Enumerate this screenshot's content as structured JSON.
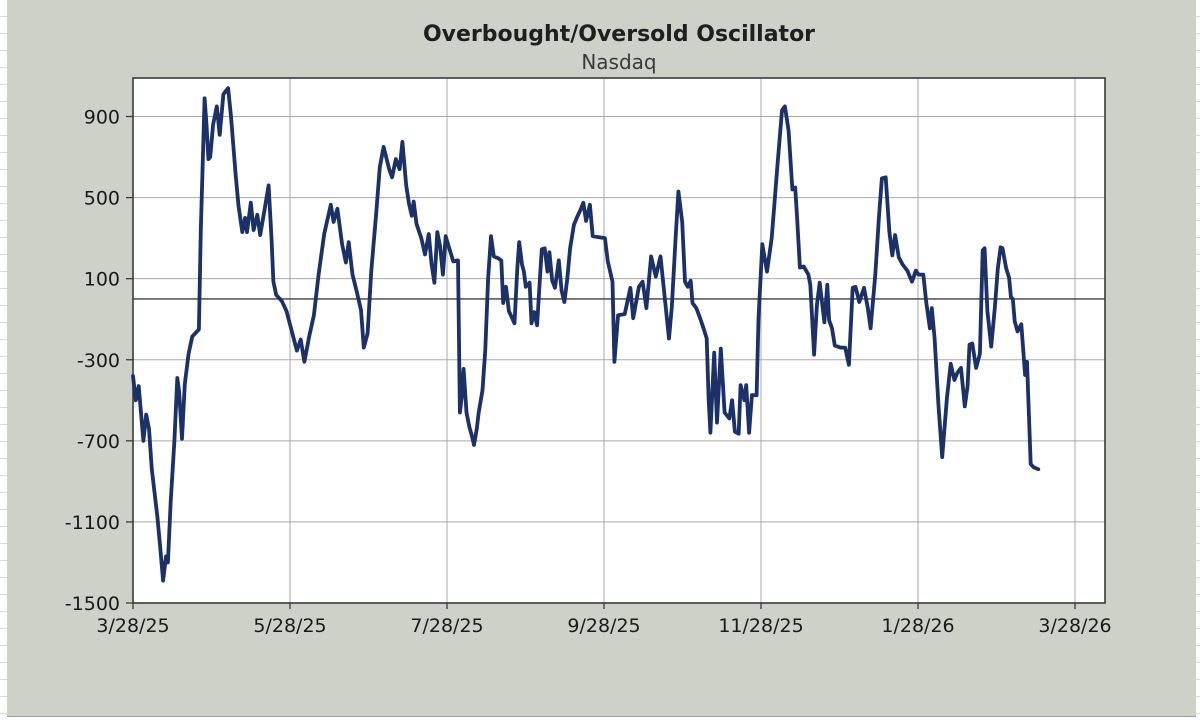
{
  "colors": {
    "chart_background": "#cdd1c8",
    "plot_background": "#ffffff",
    "gridline": "#a9a9a9",
    "axis_border": "#3a3a3a",
    "zero_line": "#3f3f3f",
    "series_line": "#1b3168",
    "label_text": "#1a1a1a",
    "spreadsheet_gridline": "#d9d9d9"
  },
  "chart_data": {
    "type": "line",
    "title": "Overbought/Oversold Oscillator",
    "subtitle": "Nasdaq",
    "grid": true,
    "legend": "none",
    "x_axis": {
      "tick_labels": [
        "3/28/25",
        "5/28/25",
        "7/28/25",
        "9/28/25",
        "11/28/25",
        "1/28/26",
        "3/28/26"
      ],
      "note": "t is the fraction of the axis from the 3/28/25 tick (t=0) to the 3/28/26 tick (t=1); plot area extends slightly past the last tick"
    },
    "y_axis": {
      "ticks": [
        900,
        500,
        100,
        -300,
        -700,
        -1100,
        -1500
      ],
      "min": -1500,
      "max": 1090
    },
    "zero_reference_line": 0,
    "series": [
      {
        "name": "Nasdaq overbought/oversold oscillator",
        "color": "#1b3168",
        "points": [
          [
            0.0,
            -380
          ],
          [
            0.003,
            -500
          ],
          [
            0.006,
            -430
          ],
          [
            0.011,
            -700
          ],
          [
            0.014,
            -570
          ],
          [
            0.017,
            -640
          ],
          [
            0.02,
            -840
          ],
          [
            0.026,
            -1080
          ],
          [
            0.029,
            -1230
          ],
          [
            0.032,
            -1390
          ],
          [
            0.035,
            -1270
          ],
          [
            0.037,
            -1300
          ],
          [
            0.04,
            -1000
          ],
          [
            0.044,
            -700
          ],
          [
            0.047,
            -390
          ],
          [
            0.049,
            -460
          ],
          [
            0.052,
            -690
          ],
          [
            0.055,
            -420
          ],
          [
            0.059,
            -270
          ],
          [
            0.063,
            -185
          ],
          [
            0.07,
            -150
          ],
          [
            0.072,
            340
          ],
          [
            0.076,
            990
          ],
          [
            0.078,
            860
          ],
          [
            0.08,
            690
          ],
          [
            0.082,
            700
          ],
          [
            0.085,
            860
          ],
          [
            0.089,
            950
          ],
          [
            0.092,
            810
          ],
          [
            0.096,
            1010
          ],
          [
            0.101,
            1040
          ],
          [
            0.104,
            900
          ],
          [
            0.109,
            610
          ],
          [
            0.112,
            460
          ],
          [
            0.116,
            330
          ],
          [
            0.119,
            400
          ],
          [
            0.121,
            330
          ],
          [
            0.125,
            475
          ],
          [
            0.128,
            340
          ],
          [
            0.132,
            415
          ],
          [
            0.135,
            315
          ],
          [
            0.14,
            450
          ],
          [
            0.144,
            560
          ],
          [
            0.147,
            300
          ],
          [
            0.149,
            85
          ],
          [
            0.152,
            20
          ],
          [
            0.158,
            -10
          ],
          [
            0.163,
            -60
          ],
          [
            0.168,
            -150
          ],
          [
            0.174,
            -255
          ],
          [
            0.178,
            -200
          ],
          [
            0.182,
            -310
          ],
          [
            0.187,
            -185
          ],
          [
            0.192,
            -80
          ],
          [
            0.197,
            120
          ],
          [
            0.203,
            320
          ],
          [
            0.21,
            465
          ],
          [
            0.213,
            380
          ],
          [
            0.217,
            445
          ],
          [
            0.222,
            270
          ],
          [
            0.226,
            180
          ],
          [
            0.229,
            280
          ],
          [
            0.233,
            120
          ],
          [
            0.237,
            45
          ],
          [
            0.242,
            -55
          ],
          [
            0.245,
            -240
          ],
          [
            0.249,
            -170
          ],
          [
            0.253,
            140
          ],
          [
            0.258,
            410
          ],
          [
            0.262,
            650
          ],
          [
            0.266,
            750
          ],
          [
            0.272,
            640
          ],
          [
            0.275,
            600
          ],
          [
            0.279,
            690
          ],
          [
            0.283,
            640
          ],
          [
            0.286,
            775
          ],
          [
            0.29,
            560
          ],
          [
            0.293,
            470
          ],
          [
            0.296,
            410
          ],
          [
            0.298,
            480
          ],
          [
            0.301,
            370
          ],
          [
            0.306,
            300
          ],
          [
            0.31,
            220
          ],
          [
            0.314,
            320
          ],
          [
            0.317,
            170
          ],
          [
            0.32,
            80
          ],
          [
            0.323,
            330
          ],
          [
            0.326,
            260
          ],
          [
            0.329,
            120
          ],
          [
            0.332,
            310
          ],
          [
            0.335,
            260
          ],
          [
            0.34,
            185
          ],
          [
            0.345,
            190
          ],
          [
            0.347,
            -560
          ],
          [
            0.349,
            -480
          ],
          [
            0.351,
            -345
          ],
          [
            0.354,
            -560
          ],
          [
            0.357,
            -630
          ],
          [
            0.36,
            -680
          ],
          [
            0.362,
            -720
          ],
          [
            0.365,
            -640
          ],
          [
            0.367,
            -560
          ],
          [
            0.371,
            -450
          ],
          [
            0.374,
            -250
          ],
          [
            0.377,
            100
          ],
          [
            0.38,
            310
          ],
          [
            0.383,
            210
          ],
          [
            0.388,
            200
          ],
          [
            0.391,
            190
          ],
          [
            0.393,
            -20
          ],
          [
            0.396,
            60
          ],
          [
            0.399,
            -60
          ],
          [
            0.403,
            -100
          ],
          [
            0.405,
            -120
          ],
          [
            0.408,
            150
          ],
          [
            0.41,
            280
          ],
          [
            0.413,
            170
          ],
          [
            0.415,
            135
          ],
          [
            0.417,
            60
          ],
          [
            0.421,
            80
          ],
          [
            0.423,
            -120
          ],
          [
            0.426,
            -65
          ],
          [
            0.429,
            -130
          ],
          [
            0.432,
            100
          ],
          [
            0.434,
            245
          ],
          [
            0.437,
            250
          ],
          [
            0.44,
            135
          ],
          [
            0.442,
            230
          ],
          [
            0.445,
            90
          ],
          [
            0.448,
            55
          ],
          [
            0.452,
            190
          ],
          [
            0.455,
            40
          ],
          [
            0.458,
            -15
          ],
          [
            0.461,
            100
          ],
          [
            0.464,
            250
          ],
          [
            0.468,
            365
          ],
          [
            0.471,
            400
          ],
          [
            0.475,
            440
          ],
          [
            0.478,
            475
          ],
          [
            0.481,
            385
          ],
          [
            0.485,
            465
          ],
          [
            0.488,
            310
          ],
          [
            0.494,
            305
          ],
          [
            0.501,
            300
          ],
          [
            0.504,
            185
          ],
          [
            0.509,
            85
          ],
          [
            0.511,
            -310
          ],
          [
            0.515,
            -80
          ],
          [
            0.522,
            -75
          ],
          [
            0.528,
            55
          ],
          [
            0.531,
            -95
          ],
          [
            0.537,
            60
          ],
          [
            0.541,
            85
          ],
          [
            0.545,
            -45
          ],
          [
            0.55,
            210
          ],
          [
            0.555,
            110
          ],
          [
            0.56,
            210
          ],
          [
            0.565,
            -15
          ],
          [
            0.569,
            -195
          ],
          [
            0.572,
            -40
          ],
          [
            0.576,
            300
          ],
          [
            0.579,
            530
          ],
          [
            0.583,
            380
          ],
          [
            0.586,
            85
          ],
          [
            0.589,
            60
          ],
          [
            0.592,
            90
          ],
          [
            0.594,
            -20
          ],
          [
            0.598,
            -45
          ],
          [
            0.602,
            -95
          ],
          [
            0.606,
            -150
          ],
          [
            0.609,
            -195
          ],
          [
            0.611,
            -490
          ],
          [
            0.613,
            -660
          ],
          [
            0.617,
            -265
          ],
          [
            0.62,
            -610
          ],
          [
            0.624,
            -245
          ],
          [
            0.628,
            -560
          ],
          [
            0.633,
            -590
          ],
          [
            0.636,
            -500
          ],
          [
            0.639,
            -655
          ],
          [
            0.643,
            -665
          ],
          [
            0.645,
            -425
          ],
          [
            0.649,
            -500
          ],
          [
            0.651,
            -425
          ],
          [
            0.654,
            -660
          ],
          [
            0.657,
            -475
          ],
          [
            0.662,
            -475
          ],
          [
            0.664,
            -100
          ],
          [
            0.668,
            270
          ],
          [
            0.673,
            135
          ],
          [
            0.678,
            300
          ],
          [
            0.684,
            650
          ],
          [
            0.689,
            930
          ],
          [
            0.692,
            950
          ],
          [
            0.696,
            830
          ],
          [
            0.7,
            540
          ],
          [
            0.703,
            550
          ],
          [
            0.705,
            400
          ],
          [
            0.708,
            155
          ],
          [
            0.712,
            160
          ],
          [
            0.717,
            120
          ],
          [
            0.719,
            70
          ],
          [
            0.723,
            -275
          ],
          [
            0.726,
            -30
          ],
          [
            0.729,
            80
          ],
          [
            0.734,
            -115
          ],
          [
            0.737,
            70
          ],
          [
            0.739,
            -105
          ],
          [
            0.742,
            -145
          ],
          [
            0.745,
            -230
          ],
          [
            0.751,
            -240
          ],
          [
            0.756,
            -240
          ],
          [
            0.76,
            -325
          ],
          [
            0.764,
            55
          ],
          [
            0.767,
            60
          ],
          [
            0.771,
            -15
          ],
          [
            0.776,
            55
          ],
          [
            0.78,
            -45
          ],
          [
            0.783,
            -145
          ],
          [
            0.788,
            120
          ],
          [
            0.792,
            415
          ],
          [
            0.795,
            595
          ],
          [
            0.799,
            600
          ],
          [
            0.803,
            330
          ],
          [
            0.806,
            215
          ],
          [
            0.809,
            315
          ],
          [
            0.813,
            205
          ],
          [
            0.817,
            170
          ],
          [
            0.822,
            140
          ],
          [
            0.827,
            85
          ],
          [
            0.831,
            140
          ],
          [
            0.834,
            120
          ],
          [
            0.839,
            120
          ],
          [
            0.842,
            -15
          ],
          [
            0.846,
            -145
          ],
          [
            0.848,
            -45
          ],
          [
            0.851,
            -195
          ],
          [
            0.855,
            -520
          ],
          [
            0.859,
            -780
          ],
          [
            0.864,
            -490
          ],
          [
            0.868,
            -320
          ],
          [
            0.872,
            -400
          ],
          [
            0.875,
            -365
          ],
          [
            0.879,
            -340
          ],
          [
            0.883,
            -530
          ],
          [
            0.886,
            -430
          ],
          [
            0.888,
            -225
          ],
          [
            0.891,
            -220
          ],
          [
            0.895,
            -340
          ],
          [
            0.899,
            -270
          ],
          [
            0.902,
            240
          ],
          [
            0.904,
            250
          ],
          [
            0.907,
            -60
          ],
          [
            0.911,
            -235
          ],
          [
            0.915,
            -40
          ],
          [
            0.918,
            150
          ],
          [
            0.921,
            255
          ],
          [
            0.923,
            250
          ],
          [
            0.927,
            150
          ],
          [
            0.93,
            105
          ],
          [
            0.932,
            10
          ],
          [
            0.934,
            0
          ],
          [
            0.936,
            -110
          ],
          [
            0.939,
            -160
          ],
          [
            0.943,
            -125
          ],
          [
            0.947,
            -375
          ],
          [
            0.949,
            -310
          ],
          [
            0.953,
            -815
          ],
          [
            0.956,
            -830
          ],
          [
            0.961,
            -840
          ]
        ]
      }
    ]
  }
}
